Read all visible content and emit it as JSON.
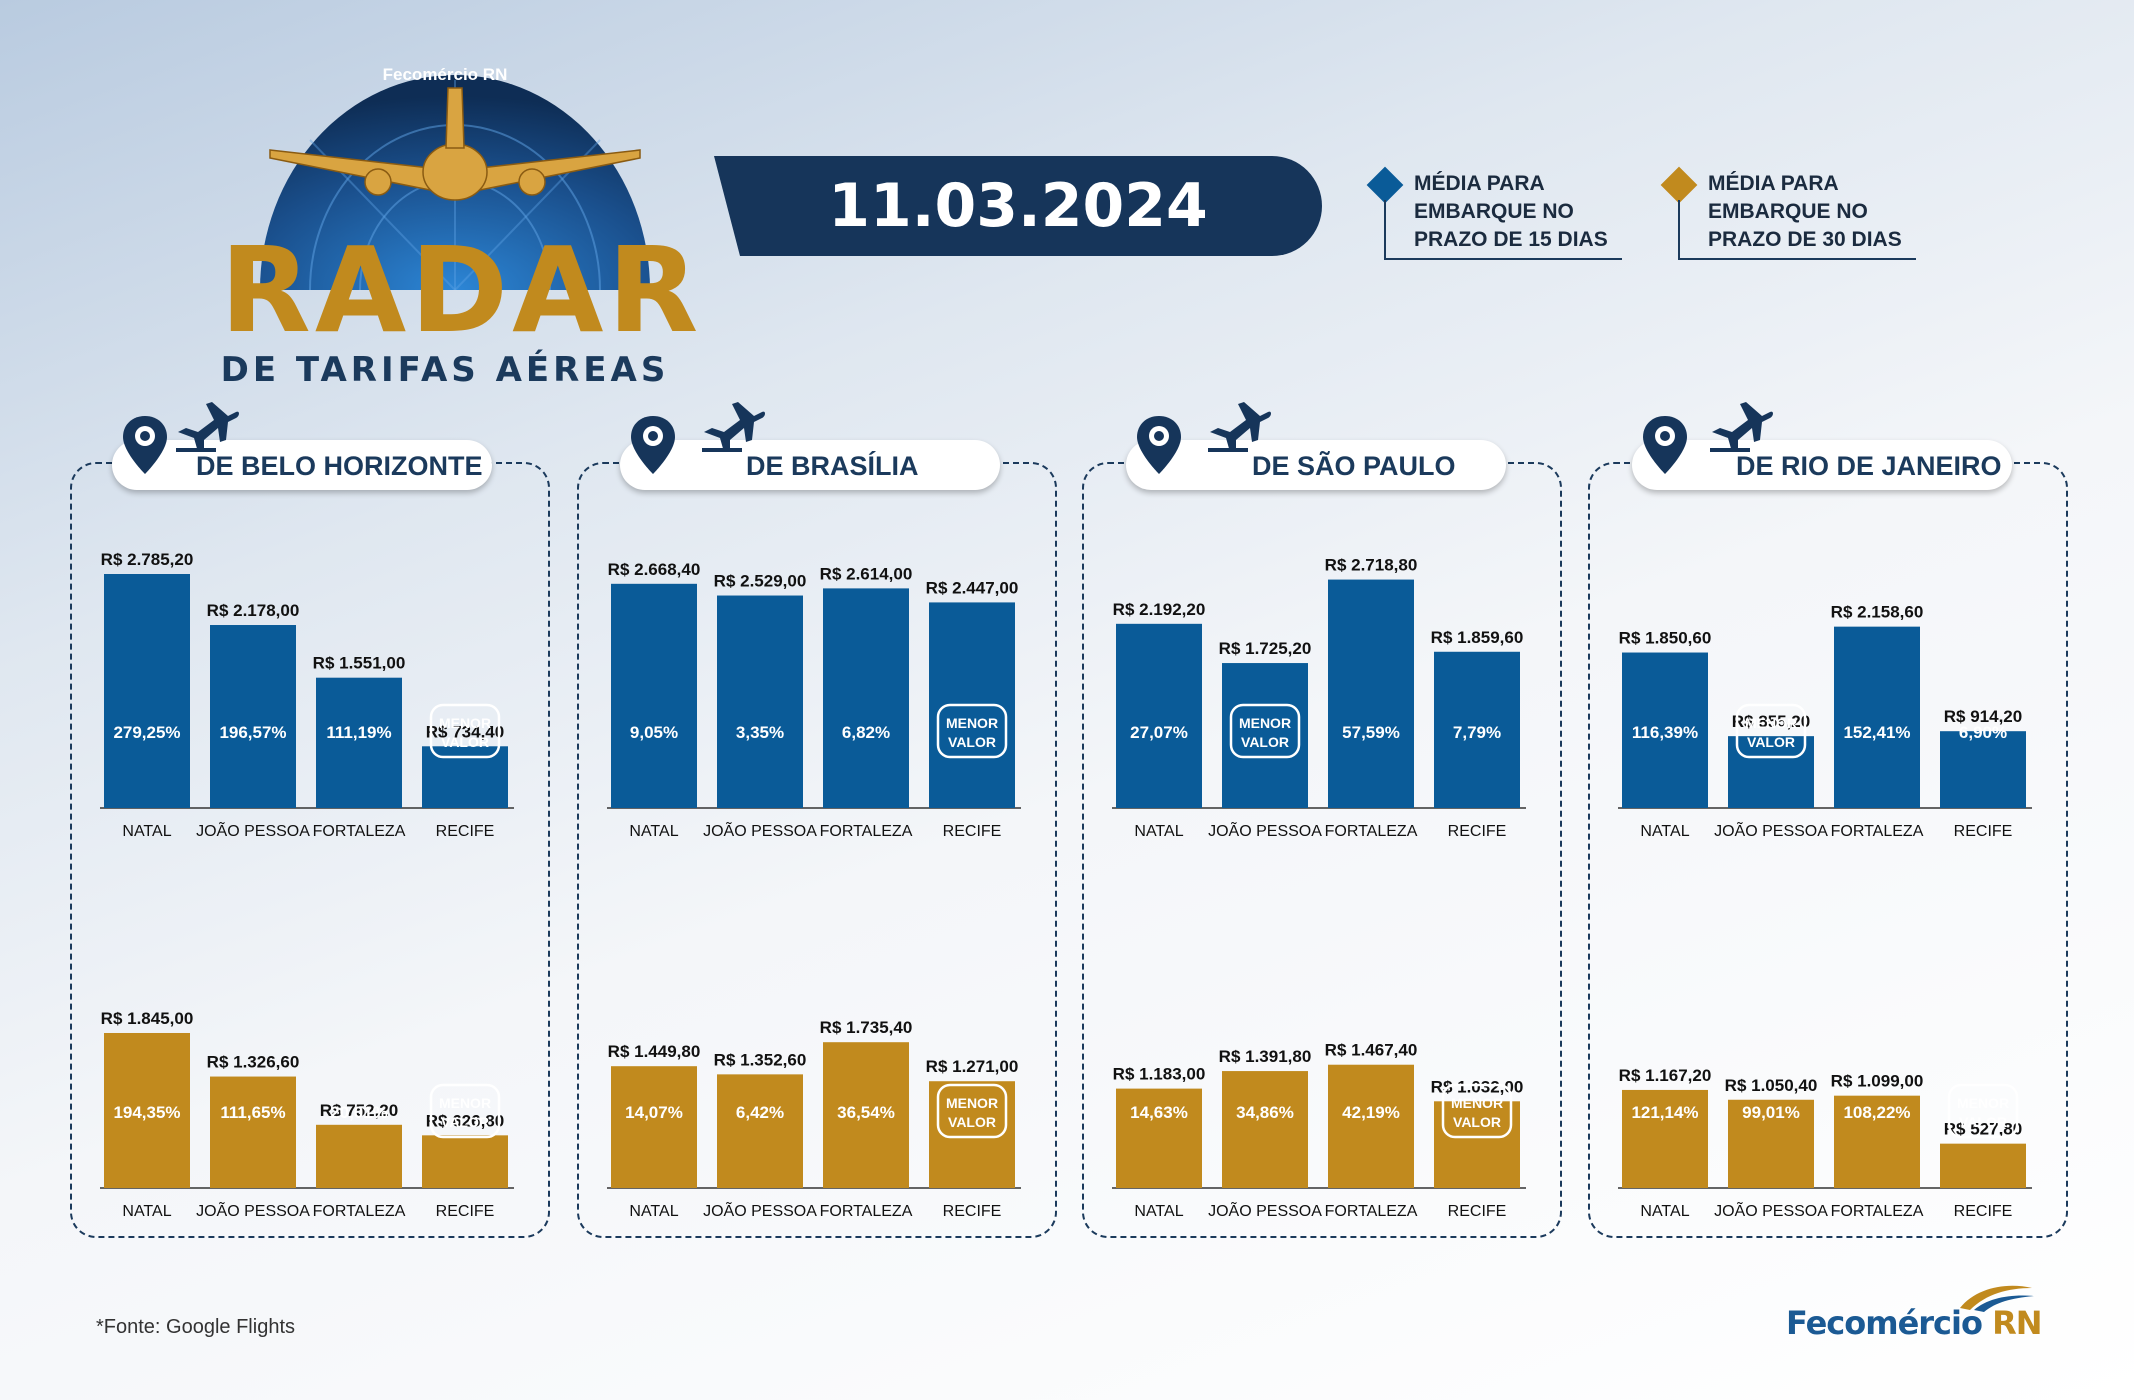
{
  "header": {
    "brand_small": "Fecomércio RN",
    "title_word": "RADAR",
    "title_sub": "DE TARIFAS AÉREAS",
    "date": "11.03.2024"
  },
  "legend": [
    {
      "label": "MÉDIA PARA\nEMBARQUE NO\nPRAZO DE 15 DIAS",
      "color": "#0a5b98"
    },
    {
      "label": "MÉDIA PARA\nEMBARQUE NO\nPRAZO DE 30 DIAS",
      "color": "#c18a1e"
    }
  ],
  "colors": {
    "blue": "#0a5b98",
    "gold": "#c18a1e",
    "navy": "#16355a"
  },
  "menor_valor": [
    "MENOR",
    "VALOR"
  ],
  "footer": {
    "source": "*Fonte: Google Flights",
    "logo_main": "Fecomércio",
    "logo_rn": " RN"
  },
  "chart_data": [
    {
      "type": "bar",
      "title": "DE BELO HORIZONTE",
      "categories": [
        "NATAL",
        "JOÃO PESSOA",
        "FORTALEZA",
        "RECIFE"
      ],
      "series": [
        {
          "name": "MÉDIA PARA EMBARQUE NO PRAZO DE 15 DIAS",
          "values": [
            2785.2,
            2178.0,
            1551.0,
            734.4
          ],
          "labels": [
            "R$ 2.785,20",
            "R$ 2.178,00",
            "R$ 1.551,00",
            "R$ 734,40"
          ],
          "percents": [
            "279,25%",
            "196,57%",
            "111,19%",
            "MENOR VALOR"
          ]
        },
        {
          "name": "MÉDIA PARA EMBARQUE NO PRAZO DE 30 DIAS",
          "values": [
            1845.0,
            1326.6,
            752.2,
            626.8
          ],
          "labels": [
            "R$ 1.845,00",
            "R$ 1.326,60",
            "R$ 752,20",
            "R$ 626,80"
          ],
          "percents": [
            "194,35%",
            "111,65%",
            "20,01%",
            "MENOR VALOR"
          ]
        }
      ]
    },
    {
      "type": "bar",
      "title": "DE BRASÍLIA",
      "categories": [
        "NATAL",
        "JOÃO PESSOA",
        "FORTALEZA",
        "RECIFE"
      ],
      "series": [
        {
          "name": "MÉDIA PARA EMBARQUE NO PRAZO DE 15 DIAS",
          "values": [
            2668.4,
            2529.0,
            2614.0,
            2447.0
          ],
          "labels": [
            "R$ 2.668,40",
            "R$ 2.529,00",
            "R$ 2.614,00",
            "R$ 2.447,00"
          ],
          "percents": [
            "9,05%",
            "3,35%",
            "6,82%",
            "MENOR VALOR"
          ]
        },
        {
          "name": "MÉDIA PARA EMBARQUE NO PRAZO DE 30 DIAS",
          "values": [
            1449.8,
            1352.6,
            1735.4,
            1271.0
          ],
          "labels": [
            "R$ 1.449,80",
            "R$ 1.352,60",
            "R$ 1.735,40",
            "R$ 1.271,00"
          ],
          "percents": [
            "14,07%",
            "6,42%",
            "36,54%",
            "MENOR VALOR"
          ]
        }
      ]
    },
    {
      "type": "bar",
      "title": "DE SÃO PAULO",
      "categories": [
        "NATAL",
        "JOÃO PESSOA",
        "FORTALEZA",
        "RECIFE"
      ],
      "series": [
        {
          "name": "MÉDIA PARA EMBARQUE NO PRAZO DE 15 DIAS",
          "values": [
            2192.2,
            1725.2,
            2718.8,
            1859.6
          ],
          "labels": [
            "R$ 2.192,20",
            "R$ 1.725,20",
            "R$ 2.718,80",
            "R$ 1.859,60"
          ],
          "percents": [
            "27,07%",
            "MENOR VALOR",
            "57,59%",
            "7,79%"
          ]
        },
        {
          "name": "MÉDIA PARA EMBARQUE NO PRAZO DE 30 DIAS",
          "values": [
            1183.0,
            1391.8,
            1467.4,
            1032.0
          ],
          "labels": [
            "R$ 1.183,00",
            "R$ 1.391,80",
            "R$ 1.467,40",
            "R$ 1.032,00"
          ],
          "percents": [
            "14,63%",
            "34,86%",
            "42,19%",
            "MENOR VALOR"
          ]
        }
      ]
    },
    {
      "type": "bar",
      "title": "DE RIO DE JANEIRO",
      "categories": [
        "NATAL",
        "JOÃO PESSOA",
        "FORTALEZA",
        "RECIFE"
      ],
      "series": [
        {
          "name": "MÉDIA PARA EMBARQUE NO PRAZO DE 15 DIAS",
          "values": [
            1850.6,
            855.2,
            2158.6,
            914.2
          ],
          "labels": [
            "R$ 1.850,60",
            "R$ 855,20",
            "R$ 2.158,60",
            "R$ 914,20"
          ],
          "percents": [
            "116,39%",
            "MENOR VALOR",
            "152,41%",
            "6,90%"
          ]
        },
        {
          "name": "MÉDIA PARA EMBARQUE NO PRAZO DE 30 DIAS",
          "values": [
            1167.2,
            1050.4,
            1099.0,
            527.8
          ],
          "labels": [
            "R$ 1.167,20",
            "R$ 1.050,40",
            "R$ 1.099,00",
            "R$ 527,80"
          ],
          "percents": [
            "121,14%",
            "99,01%",
            "108,22%",
            "MENOR VALOR"
          ]
        }
      ]
    }
  ]
}
